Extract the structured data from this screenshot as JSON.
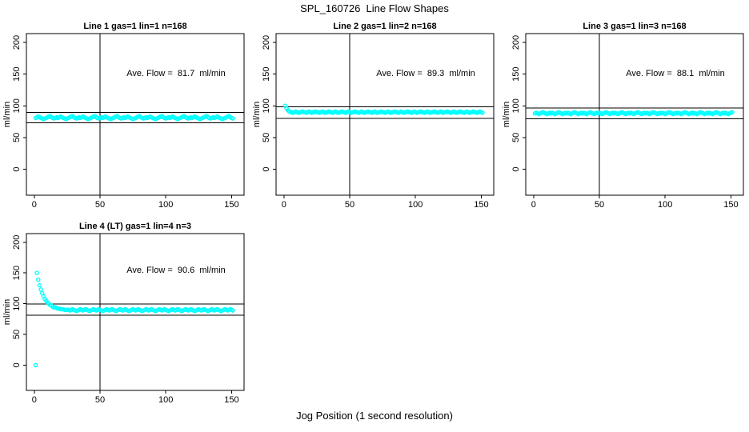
{
  "figure": {
    "main_title": "SPL_160726  Line Flow Shapes",
    "x_caption": "Jog Position (1 second resolution)"
  },
  "colors": {
    "points": "#00FFFF",
    "axis": "#000000",
    "background": "#FFFFFF"
  },
  "chart_data": {
    "type": "scatter",
    "title": "SPL_160726  Line Flow Shapes",
    "xlabel": "Jog Position (1 second resolution)",
    "y_label": "ml/min",
    "x_ticks": [
      0,
      50,
      100,
      150
    ],
    "y_ticks": [
      0,
      50,
      100,
      150,
      200
    ],
    "x_range": [
      -6,
      159.5
    ],
    "y_range": [
      -41,
      214
    ],
    "vline_x": 50,
    "marker": "open-circle",
    "grid": false,
    "charts": [
      {
        "title": "Line 1 gas=1 lin=1 n=168",
        "ave_label": "Ave. Flow =  81.7  ml/min",
        "ave_flow": 81.7,
        "hlines": [
          89.9,
          73.5
        ],
        "x_start": 1,
        "x_step": 1,
        "y": [
          81,
          82,
          83,
          82,
          81,
          80,
          79,
          80,
          81,
          82,
          83,
          84,
          82,
          81,
          80,
          81,
          82,
          81,
          82,
          83,
          82,
          81,
          80,
          79,
          80,
          81,
          82,
          83,
          84,
          82,
          81,
          80,
          81,
          82,
          81,
          82,
          83,
          82,
          81,
          80,
          79,
          80,
          81,
          82,
          83,
          84,
          82,
          81,
          80,
          81,
          82,
          81,
          82,
          83,
          82,
          81,
          80,
          79,
          80,
          81,
          82,
          83,
          84,
          82,
          81,
          80,
          81,
          82,
          81,
          82,
          83,
          82,
          81,
          80,
          79,
          80,
          81,
          82,
          83,
          84,
          82,
          81,
          80,
          81,
          82,
          81,
          82,
          83,
          82,
          81,
          80,
          79,
          80,
          81,
          82,
          83,
          84,
          82,
          81,
          80,
          81,
          82,
          81,
          82,
          83,
          82,
          81,
          80,
          79,
          80,
          81,
          82,
          83,
          84,
          82,
          81,
          80,
          81,
          82,
          81,
          82,
          83,
          82,
          81,
          80,
          79,
          80,
          81,
          82,
          83,
          84,
          82,
          81,
          80,
          81,
          82,
          81,
          82,
          83,
          82,
          81,
          80,
          79,
          80,
          81,
          82,
          83,
          84,
          82,
          81,
          80
        ]
      },
      {
        "title": "Line 2 gas=1 lin=2 n=168",
        "ave_label": "Ave. Flow =  89.3  ml/min",
        "ave_flow": 89.3,
        "hlines": [
          98.2,
          80.4
        ],
        "x_start": 1,
        "x_step": 1,
        "y": [
          100,
          96,
          93,
          91,
          90,
          90,
          89,
          90,
          91,
          90,
          89,
          90,
          90,
          91,
          90,
          90,
          89,
          90,
          91,
          90,
          89,
          90,
          90,
          91,
          90,
          90,
          89,
          90,
          91,
          90,
          89,
          90,
          90,
          91,
          90,
          90,
          89,
          90,
          91,
          90,
          89,
          90,
          90,
          91,
          90,
          90,
          89,
          90,
          91,
          90,
          89,
          90,
          90,
          91,
          90,
          90,
          89,
          90,
          91,
          90,
          89,
          90,
          90,
          91,
          90,
          90,
          89,
          90,
          91,
          90,
          89,
          90,
          90,
          91,
          90,
          90,
          89,
          90,
          91,
          90,
          89,
          90,
          90,
          91,
          90,
          90,
          89,
          90,
          91,
          90,
          89,
          90,
          90,
          91,
          90,
          90,
          89,
          90,
          91,
          90,
          89,
          90,
          90,
          91,
          90,
          90,
          89,
          90,
          91,
          90,
          89,
          90,
          90,
          91,
          90,
          90,
          89,
          90,
          91,
          90,
          89,
          90,
          90,
          91,
          90,
          90,
          89,
          90,
          91,
          90,
          89,
          90,
          90,
          91,
          90,
          90,
          89,
          90,
          91,
          90,
          89,
          90,
          90,
          91,
          90,
          90,
          89,
          90,
          91,
          90,
          89
        ]
      },
      {
        "title": "Line 3 gas=1 lin=3 n=168",
        "ave_label": "Ave. Flow =  88.1  ml/min",
        "ave_flow": 88.1,
        "hlines": [
          96.9,
          79.3
        ],
        "x_start": 1,
        "x_step": 1,
        "y": [
          88,
          89,
          88,
          87,
          88,
          89,
          90,
          89,
          88,
          87,
          88,
          89,
          88,
          89,
          88,
          87,
          88,
          89,
          90,
          89,
          88,
          87,
          88,
          89,
          88,
          89,
          88,
          87,
          88,
          89,
          90,
          89,
          88,
          87,
          88,
          89,
          88,
          89,
          88,
          87,
          88,
          89,
          90,
          89,
          88,
          87,
          88,
          89,
          88,
          89,
          88,
          87,
          88,
          89,
          90,
          89,
          88,
          87,
          88,
          89,
          88,
          89,
          88,
          87,
          88,
          89,
          90,
          89,
          88,
          87,
          88,
          89,
          88,
          89,
          88,
          87,
          88,
          89,
          90,
          89,
          88,
          87,
          88,
          89,
          88,
          89,
          88,
          87,
          88,
          89,
          90,
          89,
          88,
          87,
          88,
          89,
          88,
          89,
          88,
          87,
          88,
          89,
          90,
          89,
          88,
          87,
          88,
          89,
          88,
          89,
          88,
          87,
          88,
          89,
          90,
          89,
          88,
          87,
          88,
          89,
          88,
          89,
          88,
          87,
          88,
          89,
          90,
          89,
          88,
          87,
          88,
          89,
          88,
          89,
          88,
          87,
          88,
          89,
          90,
          89,
          88,
          87,
          88,
          89,
          88,
          89,
          88,
          87,
          88,
          89,
          90
        ]
      },
      {
        "title": "Line 4 (LT) gas=1 lin=4 n=3",
        "ave_label": "Ave. Flow =  90.6  ml/min",
        "ave_flow": 90.6,
        "hlines": [
          99.7,
          81.5
        ],
        "x_start": 1,
        "x_step": 1,
        "y": [
          0,
          150,
          139,
          130,
          123,
          117,
          112,
          108,
          105,
          102,
          100,
          98,
          97,
          95,
          94,
          94,
          93,
          92,
          92,
          91,
          91,
          91,
          90,
          90,
          90,
          90,
          89,
          90,
          91,
          90,
          89,
          88,
          89,
          90,
          91,
          90,
          89,
          90,
          91,
          90,
          89,
          88,
          89,
          90,
          91,
          90,
          89,
          90,
          91,
          90,
          89,
          88,
          89,
          90,
          91,
          90,
          89,
          90,
          91,
          90,
          89,
          88,
          89,
          90,
          91,
          90,
          89,
          90,
          91,
          90,
          89,
          88,
          89,
          90,
          91,
          90,
          89,
          90,
          91,
          90,
          89,
          88,
          89,
          90,
          91,
          90,
          89,
          90,
          91,
          90,
          89,
          88,
          89,
          90,
          91,
          90,
          89,
          90,
          91,
          90,
          89,
          88,
          89,
          90,
          91,
          90,
          89,
          90,
          91,
          90,
          89,
          88,
          89,
          90,
          91,
          90,
          89,
          90,
          91,
          90,
          89,
          88,
          89,
          90,
          91,
          90,
          89,
          90,
          91,
          90,
          89,
          88,
          89,
          90,
          91,
          90,
          89,
          90,
          91,
          90,
          89,
          88,
          89,
          90,
          91,
          90,
          89,
          90,
          91,
          90,
          89
        ]
      }
    ]
  }
}
